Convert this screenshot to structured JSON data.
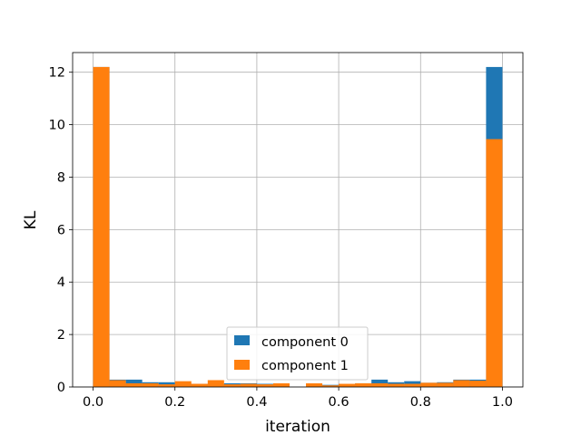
{
  "chart_data": {
    "type": "bar",
    "xlabel": "iteration",
    "ylabel": "KL",
    "xlim": [
      -0.05,
      1.05
    ],
    "ylim": [
      0,
      12.75
    ],
    "grid": true,
    "legend_position": "bottom-center",
    "xticks": [
      0.0,
      0.2,
      0.4,
      0.6,
      0.8,
      1.0
    ],
    "xtick_labels": [
      "0.0",
      "0.2",
      "0.4",
      "0.6",
      "0.8",
      "1.0"
    ],
    "yticks": [
      0,
      2,
      4,
      6,
      8,
      10,
      12
    ],
    "ytick_labels": [
      "0",
      "2",
      "4",
      "6",
      "8",
      "10",
      "12"
    ],
    "bin_edges": [
      0.0,
      0.04,
      0.08,
      0.12,
      0.16,
      0.2,
      0.24,
      0.28,
      0.32,
      0.36,
      0.4,
      0.44,
      0.48,
      0.52,
      0.56,
      0.6,
      0.64,
      0.68,
      0.72,
      0.76,
      0.8,
      0.84,
      0.88,
      0.92,
      0.96,
      1.0
    ],
    "series": [
      {
        "name": "component 0",
        "color": "#1f77b4",
        "values": [
          12.2,
          0.28,
          0.28,
          0.18,
          0.18,
          0.12,
          0.12,
          0.12,
          0.14,
          0.14,
          0.12,
          0.1,
          0.0,
          0.0,
          0.08,
          0.1,
          0.14,
          0.28,
          0.18,
          0.22,
          0.16,
          0.18,
          0.28,
          0.28,
          12.2
        ]
      },
      {
        "name": "component 1",
        "color": "#ff7f0e",
        "values": [
          12.2,
          0.26,
          0.14,
          0.14,
          0.1,
          0.22,
          0.12,
          0.26,
          0.1,
          0.12,
          0.1,
          0.14,
          0.0,
          0.14,
          0.06,
          0.12,
          0.14,
          0.14,
          0.12,
          0.12,
          0.16,
          0.16,
          0.26,
          0.24,
          9.45
        ]
      }
    ]
  }
}
